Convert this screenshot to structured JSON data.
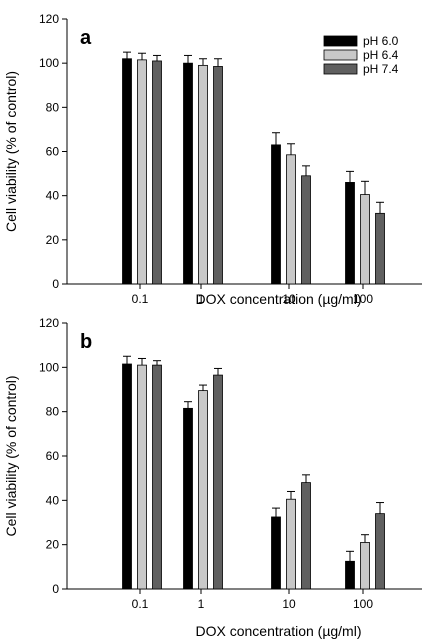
{
  "chart_data": [
    {
      "type": "bar",
      "panel_label": "a",
      "categories": [
        "0.1",
        "1",
        "10",
        "100"
      ],
      "series": [
        {
          "name": "pH 6.0",
          "values": [
            102,
            100,
            63,
            46
          ],
          "errors": [
            3,
            3.5,
            5.5,
            5
          ],
          "color": "#000000"
        },
        {
          "name": "pH 6.4",
          "values": [
            101.5,
            99,
            58.5,
            40.5
          ],
          "errors": [
            3,
            3,
            5,
            6
          ],
          "color": "#c8c8c8"
        },
        {
          "name": "pH 7.4",
          "values": [
            101,
            98.5,
            49,
            32
          ],
          "errors": [
            2.5,
            3.5,
            4.5,
            5
          ],
          "color": "#606060"
        }
      ],
      "xlabel": "DOX concentration (µg/ml)",
      "ylabel": "Cell viability (% of control)",
      "ylim": [
        0,
        120
      ],
      "yticks": [
        "0",
        "20",
        "40",
        "60",
        "80",
        "100",
        "120"
      ],
      "legend": "top-right",
      "grid": false
    },
    {
      "type": "bar",
      "panel_label": "b",
      "categories": [
        "0.1",
        "1",
        "10",
        "100"
      ],
      "series": [
        {
          "name": "pH 6.0",
          "values": [
            101.5,
            81.5,
            32.5,
            12.5
          ],
          "errors": [
            3.5,
            3,
            4,
            4.5
          ],
          "color": "#000000"
        },
        {
          "name": "pH 6.4",
          "values": [
            101,
            89.5,
            40.5,
            21
          ],
          "errors": [
            3,
            2.5,
            3.5,
            3.5
          ],
          "color": "#c8c8c8"
        },
        {
          "name": "pH 7.4",
          "values": [
            101,
            96.5,
            48,
            34
          ],
          "errors": [
            2,
            3,
            3.5,
            5
          ],
          "color": "#606060"
        }
      ],
      "xlabel": "DOX concentration (µg/ml)",
      "ylabel": "Cell viability (% of control)",
      "ylim": [
        0,
        120
      ],
      "yticks": [
        "0",
        "20",
        "40",
        "60",
        "80",
        "100",
        "120"
      ],
      "grid": false
    }
  ]
}
